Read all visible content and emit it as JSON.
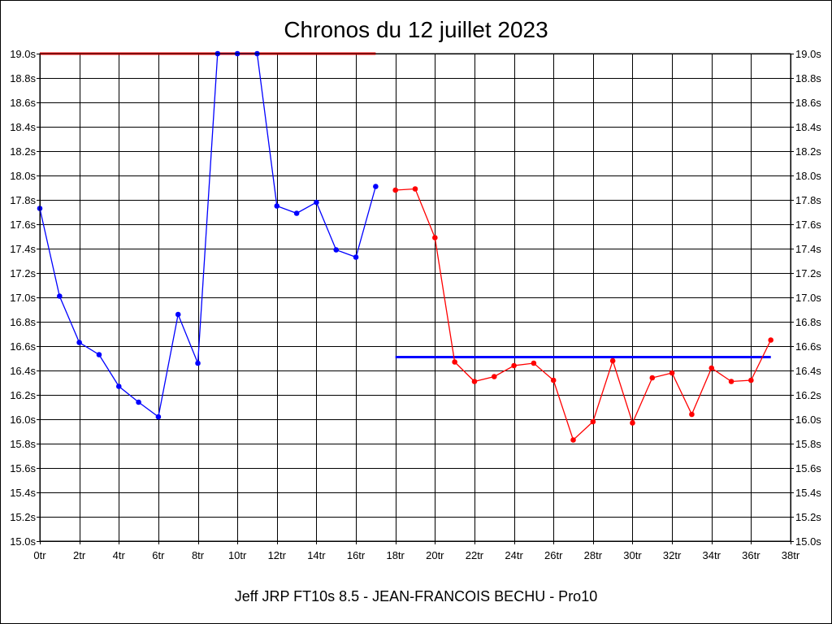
{
  "chart_data": {
    "type": "line",
    "title": "Chronos du 12 juillet 2023",
    "subtitle": "Jeff JRP FT10s 8.5 - JEAN-FRANCOIS BECHU - Pro10",
    "xlabel": "",
    "ylabel": "",
    "xlim": [
      0,
      38
    ],
    "ylim": [
      15.0,
      19.0
    ],
    "grid": true,
    "x_tick_labels": [
      "0tr",
      "2tr",
      "4tr",
      "6tr",
      "8tr",
      "10tr",
      "12tr",
      "14tr",
      "16tr",
      "18tr",
      "20tr",
      "22tr",
      "24tr",
      "26tr",
      "28tr",
      "30tr",
      "32tr",
      "34tr",
      "36tr",
      "38tr"
    ],
    "y_tick_labels": [
      "15.0s",
      "15.2s",
      "15.4s",
      "15.6s",
      "15.8s",
      "16.0s",
      "16.2s",
      "16.4s",
      "16.6s",
      "16.8s",
      "17.0s",
      "17.2s",
      "17.4s",
      "17.6s",
      "17.8s",
      "18.0s",
      "18.2s",
      "18.4s",
      "18.6s",
      "18.8s",
      "19.0s"
    ],
    "series": [
      {
        "color": "#0000ff",
        "x": [
          0,
          1,
          2,
          3,
          4,
          5,
          6,
          7,
          8,
          9,
          10,
          11,
          12,
          13,
          14,
          15,
          16,
          17
        ],
        "values": [
          17.73,
          17.01,
          16.63,
          16.53,
          16.27,
          16.14,
          16.02,
          16.86,
          16.46,
          19.0,
          19.0,
          19.0,
          17.75,
          17.69,
          17.78,
          17.39,
          17.33,
          17.91
        ]
      },
      {
        "color": "#ff0000",
        "x": [
          18,
          19,
          20,
          21,
          22,
          23,
          24,
          25,
          26,
          27,
          28,
          29,
          30,
          31,
          32,
          33,
          34,
          35,
          36,
          37
        ],
        "values": [
          17.88,
          17.89,
          17.49,
          16.47,
          16.31,
          16.35,
          16.44,
          16.46,
          16.32,
          15.83,
          15.98,
          16.48,
          15.97,
          16.34,
          16.38,
          16.04,
          16.42,
          16.31,
          16.32,
          16.65
        ]
      }
    ],
    "reference_lines": [
      {
        "color": "#ff0000",
        "x_start": 0,
        "x_end": 17,
        "value": 19.0
      },
      {
        "color": "#0000ff",
        "x_start": 18,
        "x_end": 37,
        "value": 16.51
      }
    ]
  }
}
